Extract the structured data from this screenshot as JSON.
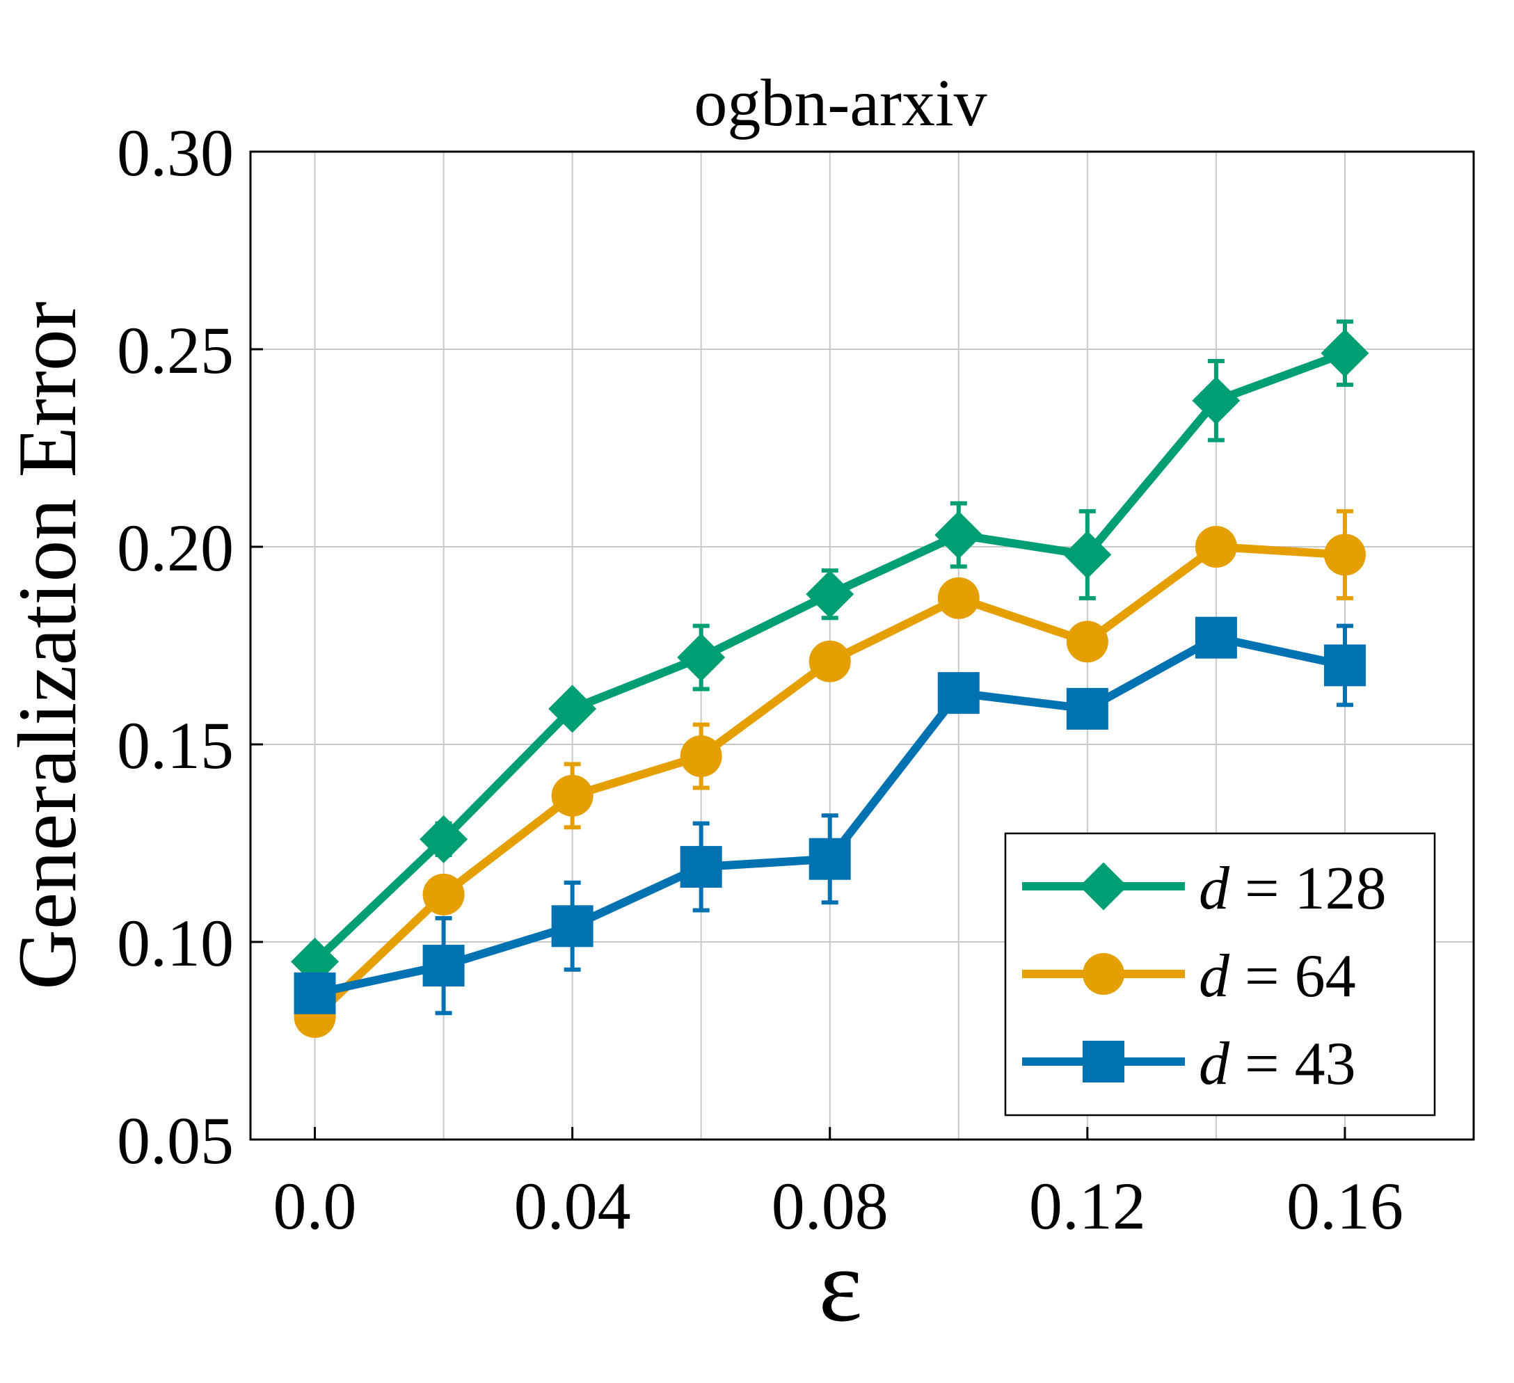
{
  "chart_data": {
    "type": "line",
    "title": "ogbn-arxiv",
    "xlabel": "ε",
    "ylabel": "Generalization Error",
    "xlim": [
      -0.01,
      0.18
    ],
    "ylim": [
      0.05,
      0.3
    ],
    "xticks": [
      0.0,
      0.04,
      0.08,
      0.12,
      0.16
    ],
    "xtick_labels": [
      "0.0",
      "0.04",
      "0.08",
      "0.12",
      "0.16"
    ],
    "yticks": [
      0.05,
      0.1,
      0.15,
      0.2,
      0.25,
      0.3
    ],
    "ytick_labels": [
      "0.05",
      "0.10",
      "0.15",
      "0.20",
      "0.25",
      "0.30"
    ],
    "x_gridlines": [
      0.0,
      0.02,
      0.04,
      0.06,
      0.08,
      0.1,
      0.12,
      0.14,
      0.16
    ],
    "grid": true,
    "legend_position": "bottom-right",
    "x": [
      0.0,
      0.02,
      0.04,
      0.06,
      0.08,
      0.1,
      0.12,
      0.14,
      0.16
    ],
    "series": [
      {
        "name": "d = 128",
        "legend_italic": "d",
        "legend_rest": " = 128",
        "marker": "diamond",
        "color": "#009E73",
        "values": [
          0.095,
          0.126,
          0.159,
          0.172,
          0.188,
          0.203,
          0.198,
          0.237,
          0.249
        ],
        "errors": [
          0.003,
          0.004,
          0.003,
          0.008,
          0.006,
          0.008,
          0.011,
          0.01,
          0.008
        ]
      },
      {
        "name": "d = 64",
        "legend_italic": "d",
        "legend_rest": " = 64",
        "marker": "circle",
        "color": "#E69F00",
        "values": [
          0.081,
          0.112,
          0.137,
          0.147,
          0.171,
          0.187,
          0.176,
          0.2,
          0.198
        ],
        "errors": [
          0.002,
          0.004,
          0.008,
          0.008,
          0.003,
          0.004,
          0.003,
          0.003,
          0.011
        ]
      },
      {
        "name": "d = 43",
        "legend_italic": "d",
        "legend_rest": " = 43",
        "marker": "square",
        "color": "#0072B2",
        "values": [
          0.087,
          0.094,
          0.104,
          0.119,
          0.121,
          0.163,
          0.159,
          0.177,
          0.17
        ],
        "errors": [
          0.003,
          0.012,
          0.011,
          0.011,
          0.011,
          0.003,
          0.003,
          0.003,
          0.01
        ]
      }
    ]
  }
}
